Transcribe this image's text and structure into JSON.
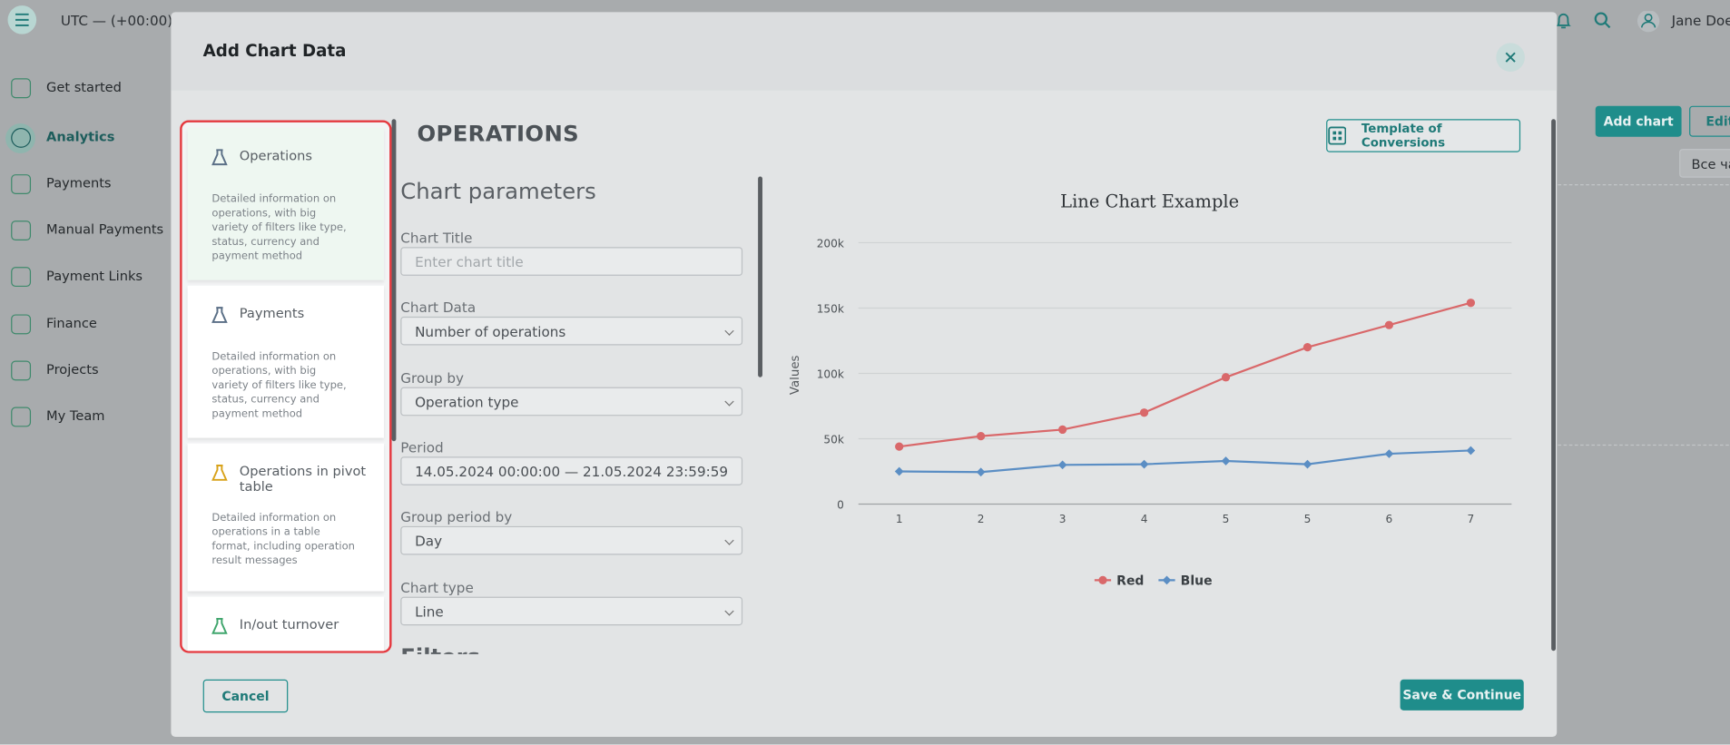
{
  "topbar": {
    "timezone": "UTC — (+00:00) |",
    "user": "Jane Doe"
  },
  "sidebar": {
    "items": [
      "Get started",
      "Analytics",
      "Payments",
      "Manual Payments",
      "Payment Links",
      "Finance",
      "Projects",
      "My Team"
    ],
    "active": 1
  },
  "background": {
    "buttons": [
      "Add chart",
      "Edit"
    ],
    "filter": "Все ча"
  },
  "modal": {
    "title": "Add Chart Data",
    "data_sources": [
      {
        "name": "Operations",
        "description": "Detailed information on operations, with big variety of filters like type, status, currency and payment method"
      },
      {
        "name": "Payments",
        "description": "Detailed information on operations, with big variety of filters like type, status, currency and payment method"
      },
      {
        "name": "Operations in pivot table",
        "description": "Detailed information on operations in a table format, including operation result messages"
      },
      {
        "name": "In/out turnover"
      }
    ],
    "section_title": "OPERATIONS",
    "template_button": "Template of Conversions",
    "form": {
      "title": "Chart parameters",
      "fields": [
        {
          "label": "Chart Title",
          "placeholder": "Enter chart title"
        },
        {
          "label": "Chart Data",
          "value": "Number of operations"
        },
        {
          "label": "Group by",
          "value": "Operation type"
        },
        {
          "label": "Period",
          "value": "14.05.2024  00:00:00  —  21.05.2024  23:59:59"
        },
        {
          "label": "Group period by",
          "value": "Day"
        },
        {
          "label": "Chart type",
          "value": "Line"
        }
      ],
      "next_section": "Filters"
    },
    "cancel": "Cancel",
    "submit": "Save & Continue"
  },
  "chart_data": {
    "type": "line",
    "title": "Line Chart Example",
    "y_label": "Values",
    "categories": [
      "1",
      "2",
      "3",
      "4",
      "5",
      "5",
      "6",
      "7"
    ],
    "series": [
      {
        "name": "Red",
        "color": "#d9686a",
        "marker": "circle",
        "values": [
          44000,
          52000,
          57000,
          70000,
          97000,
          120000,
          137000,
          154000
        ]
      },
      {
        "name": "Blue",
        "color": "#5b8ec4",
        "marker": "diamond",
        "values": [
          25000,
          24500,
          30000,
          30500,
          33000,
          30500,
          38500,
          41000
        ]
      }
    ],
    "ylim": [
      0,
      200000
    ],
    "yticks": [
      0,
      {
        "value": 50000,
        "label": "50k"
      },
      {
        "value": 100000,
        "label": "100k"
      },
      {
        "value": 150000,
        "label": "150k"
      },
      {
        "value": 200000,
        "label": "200k"
      }
    ],
    "grid": true,
    "legend": "bottom"
  }
}
